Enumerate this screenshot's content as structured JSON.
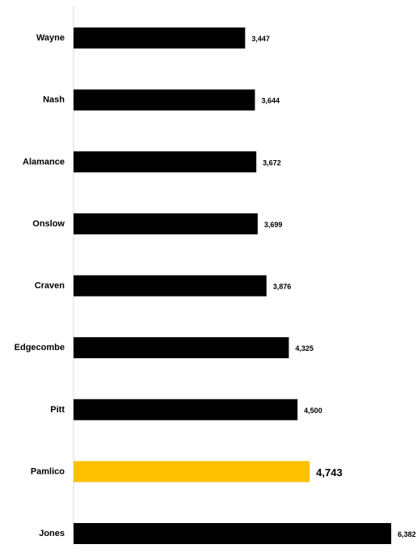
{
  "chart_data": {
    "type": "bar",
    "orientation": "horizontal",
    "title": "",
    "xlabel": "",
    "ylabel": "",
    "categories": [
      "Wayne",
      "Nash",
      "Alamance",
      "Onslow",
      "Craven",
      "Edgecombe",
      "Pitt",
      "Pamlico",
      "Jones"
    ],
    "values": [
      3447,
      3644,
      3672,
      3699,
      3876,
      4325,
      4500,
      4743,
      6382
    ],
    "value_labels": [
      "3,447",
      "3,644",
      "3,672",
      "3,699",
      "3,876",
      "4,325",
      "4,500",
      "4,743",
      "6,382"
    ],
    "highlight_category": "Pamlico",
    "xlim": [
      0,
      6900
    ],
    "grid": false,
    "colors": {
      "default_bar": "#000000",
      "highlight_bar": "#FFC000",
      "axis_line": "#d9d9d9",
      "label": "#000000"
    }
  }
}
